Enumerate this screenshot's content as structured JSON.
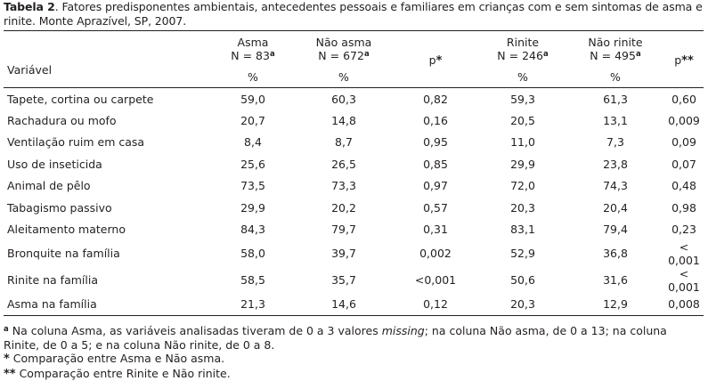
{
  "caption": {
    "label": "Tabela 2",
    "text": ". Fatores predisponentes ambientais, antecedentes pessoais e familiares em crianças com e sem sintomas de asma e rinite. Monte Aprazível, SP, 2007."
  },
  "table": {
    "variable_header": "Variável",
    "columns": [
      {
        "name": "Asma",
        "n": "N = 83",
        "sup": "a",
        "unit": "%"
      },
      {
        "name": "Não asma",
        "n": "N = 672",
        "sup": "a",
        "unit": "%"
      },
      {
        "name": "p",
        "mark": "*"
      },
      {
        "name": "Rinite",
        "n": "N = 246",
        "sup": "a",
        "unit": "%"
      },
      {
        "name": "Não rinite",
        "n": "N = 495",
        "sup": "a",
        "unit": "%"
      },
      {
        "name": "p",
        "mark": "**"
      }
    ],
    "rows": [
      {
        "label": "Tapete, cortina ou carpete",
        "values": [
          "59,0",
          "60,3",
          "0,82",
          "59,3",
          "61,3",
          "0,60"
        ]
      },
      {
        "label": "Rachadura ou mofo",
        "values": [
          "20,7",
          "14,8",
          "0,16",
          "20,5",
          "13,1",
          "0,009"
        ]
      },
      {
        "label": "Ventilação ruim em casa",
        "values": [
          "8,4",
          "8,7",
          "0,95",
          "11,0",
          "7,3",
          "0,09"
        ]
      },
      {
        "label": "Uso de inseticida",
        "values": [
          "25,6",
          "26,5",
          "0,85",
          "29,9",
          "23,8",
          "0,07"
        ]
      },
      {
        "label": "Animal de pêlo",
        "values": [
          "73,5",
          "73,3",
          "0,97",
          "72,0",
          "74,3",
          "0,48"
        ]
      },
      {
        "label": "Tabagismo passivo",
        "values": [
          "29,9",
          "20,2",
          "0,57",
          "20,3",
          "20,4",
          "0,98"
        ]
      },
      {
        "label": "Aleitamento materno",
        "values": [
          "84,3",
          "79,7",
          "0,31",
          "83,1",
          "79,4",
          "0,23"
        ]
      },
      {
        "label": "Bronquite na família",
        "values": [
          "58,0",
          "39,7",
          "0,002",
          "52,9",
          "36,8",
          "< 0,001"
        ]
      },
      {
        "label": "Rinite na família",
        "values": [
          "58,5",
          "35,7",
          "<0,001",
          "50,6",
          "31,6",
          "< 0,001"
        ]
      },
      {
        "label": "Asma na família",
        "values": [
          "21,3",
          "14,6",
          "0,12",
          "20,3",
          "12,9",
          "0,008"
        ]
      }
    ]
  },
  "footnotes": {
    "a_mark": "a",
    "a_text_1": " Na coluna Asma, as variáveis analisadas tiveram de 0 a 3 valores ",
    "a_text_italic": "missing",
    "a_text_2": "; na coluna Não asma, de 0 a 13; na coluna Rinite, de 0 a 5; e na coluna Não rinite, de 0 a 8.",
    "star1_mark": "*",
    "star1_text": " Comparação entre Asma e Não asma.",
    "star2_mark": "**",
    "star2_text": " Comparação entre Rinite e Não rinite."
  }
}
